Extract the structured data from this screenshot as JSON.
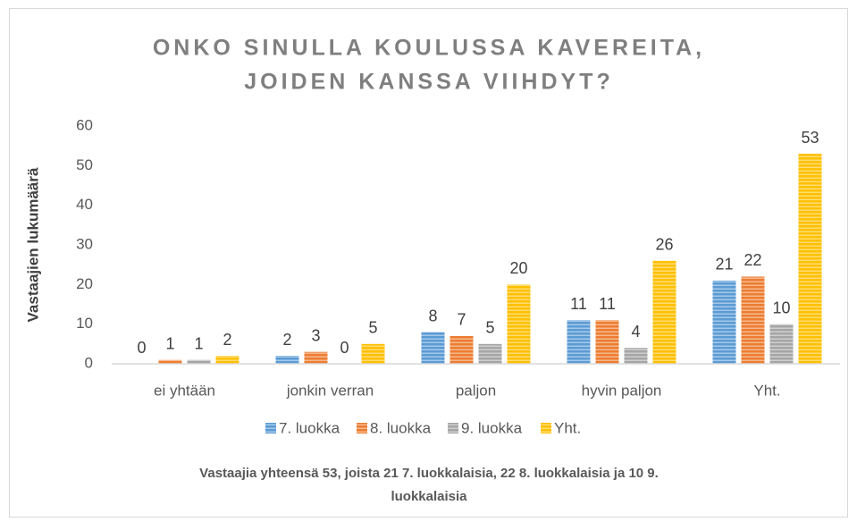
{
  "chart_data": {
    "type": "bar",
    "title": [
      "ONKO SINULLA KOULUSSA KAVEREITA,",
      "JOIDEN KANSSA VIIHDYT?"
    ],
    "y_label": "Vastaajien lukumäärä",
    "categories": [
      "ei yhtään",
      "jonkin verran",
      "paljon",
      "hyvin paljon",
      "Yht."
    ],
    "series": [
      {
        "name": "7. luokka",
        "color": "#5b9bd5",
        "values": [
          0,
          2,
          8,
          11,
          21
        ]
      },
      {
        "name": "8. luokka",
        "color": "#ed7d31",
        "values": [
          1,
          3,
          7,
          11,
          22
        ]
      },
      {
        "name": "9. luokka",
        "color": "#a5a5a5",
        "values": [
          1,
          0,
          5,
          4,
          10
        ]
      },
      {
        "name": "Yht.",
        "color": "#ffc000",
        "values": [
          2,
          5,
          20,
          26,
          53
        ]
      }
    ],
    "ylim": [
      0,
      60
    ],
    "yticks": [
      0,
      10,
      20,
      30,
      40,
      50,
      60
    ],
    "grid": false,
    "legend": "bottom",
    "note": [
      "Vastaajia yhteensä 53, joista 21 7. luokkalaisia, 22 8. luokkalaisia ja 10 9.",
      "luokkalaisia"
    ]
  }
}
